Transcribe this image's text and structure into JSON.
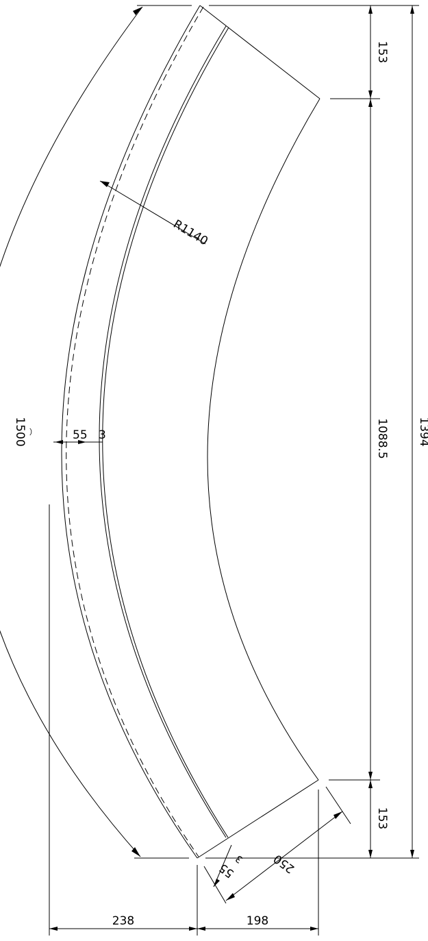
{
  "drawing": {
    "dimensions": {
      "top_offset": "153",
      "middle_height": "1088.5",
      "bottom_offset": "153",
      "total_height": "1394",
      "arc_length": "1500",
      "radius": "R1140",
      "wall_outer": "55",
      "wall_inner": "3",
      "end_width": "250",
      "end_wall_outer": "55",
      "end_wall_inner": "3",
      "bottom_left": "238",
      "bottom_right": "198"
    }
  }
}
